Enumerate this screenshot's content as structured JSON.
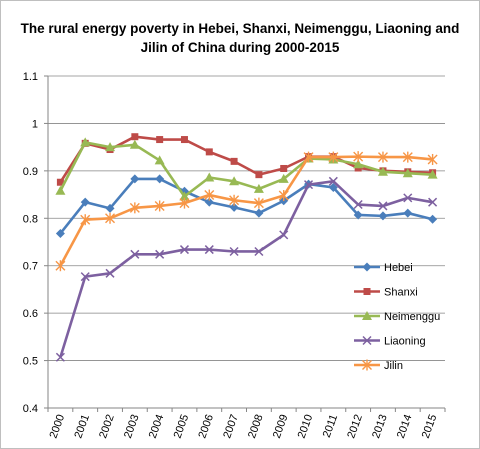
{
  "chart_data": {
    "type": "line",
    "title_lines": [
      "The rural energy poverty in Hebei, Shanxi, Neimenggu, Liaoning and",
      "Jilin of China during 2000-2015"
    ],
    "categories": [
      "2000",
      "2001",
      "2002",
      "2003",
      "2004",
      "2005",
      "2006",
      "2007",
      "2008",
      "2009",
      "2010",
      "2011",
      "2012",
      "2013",
      "2014",
      "2015"
    ],
    "ylim": [
      0.4,
      1.1
    ],
    "yticks": [
      {
        "value": 0.4,
        "label": "0.4"
      },
      {
        "value": 0.5,
        "label": "0.5"
      },
      {
        "value": 0.6,
        "label": "0.6"
      },
      {
        "value": 0.7,
        "label": "0.7"
      },
      {
        "value": 0.8,
        "label": "0.8"
      },
      {
        "value": 0.9,
        "label": "0.9"
      },
      {
        "value": 1.0,
        "label": "1"
      },
      {
        "value": 1.1,
        "label": "1.1"
      }
    ],
    "grid": true,
    "legend_position": "right",
    "series": [
      {
        "name": "Hebei",
        "color": "#4a7ebb",
        "marker": "diamond",
        "values": [
          0.768,
          0.834,
          0.821,
          0.883,
          0.883,
          0.857,
          0.834,
          0.823,
          0.811,
          0.837,
          0.872,
          0.865,
          0.807,
          0.805,
          0.811,
          0.798
        ]
      },
      {
        "name": "Shanxi",
        "color": "#be4b48",
        "marker": "square",
        "values": [
          0.876,
          0.958,
          0.945,
          0.972,
          0.966,
          0.966,
          0.94,
          0.92,
          0.892,
          0.905,
          0.93,
          0.93,
          0.906,
          0.9,
          0.898,
          0.896
        ]
      },
      {
        "name": "Neimenggu",
        "color": "#98b954",
        "marker": "triangle",
        "values": [
          0.858,
          0.96,
          0.95,
          0.955,
          0.922,
          0.846,
          0.886,
          0.878,
          0.862,
          0.883,
          0.926,
          0.924,
          0.914,
          0.898,
          0.895,
          0.892
        ]
      },
      {
        "name": "Liaoning",
        "color": "#7d60a0",
        "marker": "x",
        "values": [
          0.507,
          0.677,
          0.684,
          0.724,
          0.724,
          0.734,
          0.734,
          0.73,
          0.73,
          0.765,
          0.871,
          0.878,
          0.829,
          0.826,
          0.843,
          0.834
        ]
      },
      {
        "name": "Jilin",
        "color": "#f79646",
        "marker": "star",
        "values": [
          0.7,
          0.797,
          0.8,
          0.822,
          0.826,
          0.832,
          0.849,
          0.838,
          0.832,
          0.848,
          0.929,
          0.929,
          0.93,
          0.929,
          0.929,
          0.924
        ]
      }
    ]
  }
}
